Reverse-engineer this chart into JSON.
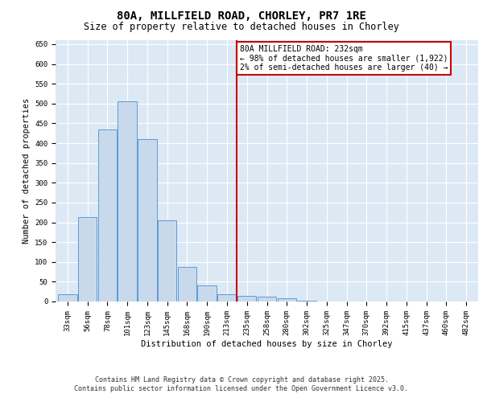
{
  "title": "80A, MILLFIELD ROAD, CHORLEY, PR7 1RE",
  "subtitle": "Size of property relative to detached houses in Chorley",
  "xlabel": "Distribution of detached houses by size in Chorley",
  "ylabel": "Number of detached properties",
  "categories": [
    "33sqm",
    "56sqm",
    "78sqm",
    "101sqm",
    "123sqm",
    "145sqm",
    "168sqm",
    "190sqm",
    "213sqm",
    "235sqm",
    "258sqm",
    "280sqm",
    "302sqm",
    "325sqm",
    "347sqm",
    "370sqm",
    "392sqm",
    "415sqm",
    "437sqm",
    "460sqm",
    "482sqm"
  ],
  "values": [
    18,
    213,
    435,
    505,
    410,
    205,
    87,
    40,
    18,
    15,
    12,
    8,
    3,
    1,
    0,
    0,
    0,
    1,
    0,
    0,
    1
  ],
  "bar_color": "#c9d9ec",
  "bar_edge_color": "#5b9bd5",
  "vline_x": 8.5,
  "vline_color": "#cc0000",
  "annotation_text": "80A MILLFIELD ROAD: 232sqm\n← 98% of detached houses are smaller (1,922)\n2% of semi-detached houses are larger (40) →",
  "annotation_box_color": "#ffffff",
  "annotation_box_edge": "#cc0000",
  "ylim": [
    0,
    660
  ],
  "yticks": [
    0,
    50,
    100,
    150,
    200,
    250,
    300,
    350,
    400,
    450,
    500,
    550,
    600,
    650
  ],
  "bg_color": "#dce9f5",
  "fig_bg_color": "#ffffff",
  "grid_color": "#ffffff",
  "footer_line1": "Contains HM Land Registry data © Crown copyright and database right 2025.",
  "footer_line2": "Contains public sector information licensed under the Open Government Licence v3.0.",
  "title_fontsize": 10,
  "subtitle_fontsize": 8.5,
  "axis_label_fontsize": 7.5,
  "tick_fontsize": 6.5,
  "annotation_fontsize": 7,
  "footer_fontsize": 6
}
